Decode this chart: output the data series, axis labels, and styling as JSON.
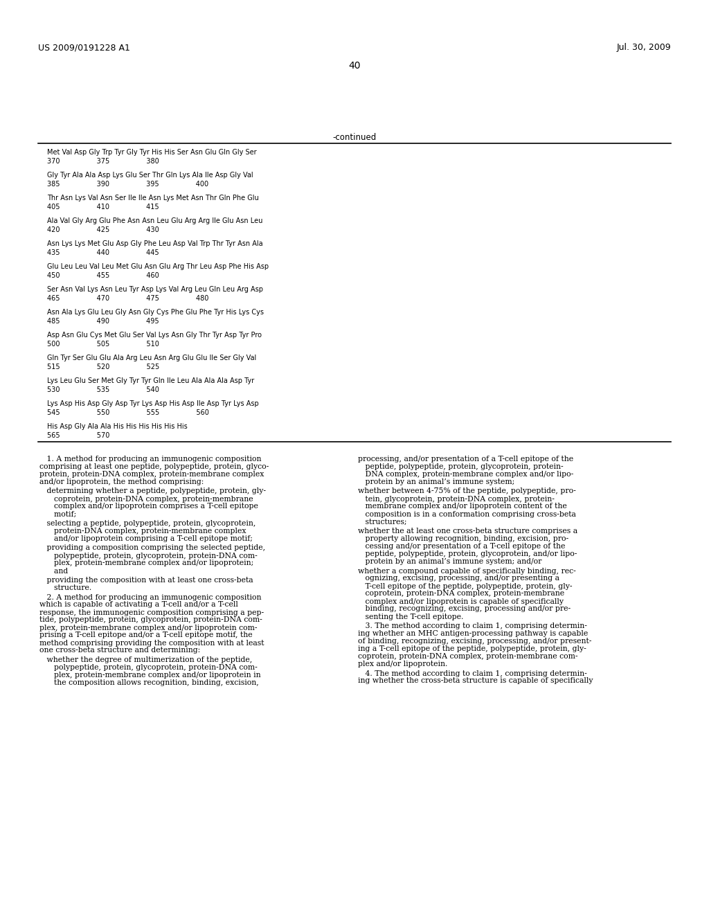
{
  "header_left": "US 2009/0191228 A1",
  "header_right": "Jul. 30, 2009",
  "page_number": "40",
  "continued_label": "-continued",
  "background_color": "#ffffff",
  "seq_lines": [
    [
      "Met Val Asp Gly Trp Tyr Gly Tyr His His Ser Asn Glu Gln Gly Ser",
      "370                 375                 380"
    ],
    [
      "Gly Tyr Ala Ala Asp Lys Glu Ser Thr Gln Lys Ala Ile Asp Gly Val",
      "385                 390                 395                 400"
    ],
    [
      "Thr Asn Lys Val Asn Ser Ile Ile Asn Lys Met Asn Thr Gln Phe Glu",
      "405                 410                 415"
    ],
    [
      "Ala Val Gly Arg Glu Phe Asn Asn Leu Glu Arg Arg Ile Glu Asn Leu",
      "420                 425                 430"
    ],
    [
      "Asn Lys Lys Met Glu Asp Gly Phe Leu Asp Val Trp Thr Tyr Asn Ala",
      "435                 440                 445"
    ],
    [
      "Glu Leu Leu Val Leu Met Glu Asn Glu Arg Thr Leu Asp Phe His Asp",
      "450                 455                 460"
    ],
    [
      "Ser Asn Val Lys Asn Leu Tyr Asp Lys Val Arg Leu Gln Leu Arg Asp",
      "465                 470                 475                 480"
    ],
    [
      "Asn Ala Lys Glu Leu Gly Asn Gly Cys Phe Glu Phe Tyr His Lys Cys",
      "485                 490                 495"
    ],
    [
      "Asp Asn Glu Cys Met Glu Ser Val Lys Asn Gly Thr Tyr Asp Tyr Pro",
      "500                 505                 510"
    ],
    [
      "Gln Tyr Ser Glu Glu Ala Arg Leu Asn Arg Glu Glu Ile Ser Gly Val",
      "515                 520                 525"
    ],
    [
      "Lys Leu Glu Ser Met Gly Tyr Tyr Gln Ile Leu Ala Ala Ala Asp Tyr",
      "530                 535                 540"
    ],
    [
      "Lys Asp His Asp Gly Asp Tyr Lys Asp His Asp Ile Asp Tyr Lys Asp",
      "545                 550                 555                 560"
    ],
    [
      "His Asp Gly Ala Ala His His His His His His",
      "565                 570"
    ]
  ],
  "left_col_blocks": [
    "   1. A method for producing an immunogenic composition\ncomprising at least one peptide, polypeptide, protein, glyco-\nprotein, protein-DNA complex, protein-membrane complex\nand/or lipoprotein, the method comprising:",
    "   determining whether a peptide, polypeptide, protein, gly-\n      coprotein, protein-DNA complex, protein-membrane\n      complex and/or lipoprotein comprises a T-cell epitope\n      motif;",
    "   selecting a peptide, polypeptide, protein, glycoprotein,\n      protein-DNA complex, protein-membrane complex\n      and/or lipoprotein comprising a T-cell epitope motif;",
    "   providing a composition comprising the selected peptide,\n      polypeptide, protein, glycoprotein, protein-DNA com-\n      plex, protein-membrane complex and/or lipoprotein;\n      and",
    "   providing the composition with at least one cross-beta\n      structure.",
    "   2. A method for producing an immunogenic composition\nwhich is capable of activating a T-cell and/or a T-cell\nresponse, the immunogenic composition comprising a pep-\ntide, polypeptide, protein, glycoprotein, protein-DNA com-\nplex, protein-membrane complex and/or lipoprotein com-\nprising a T-cell epitope and/or a T-cell epitope motif, the\nmethod comprising providing the composition with at least\none cross-beta structure and determining:",
    "   whether the degree of multimerization of the peptide,\n      polypeptide, protein, glycoprotein, protein-DNA com-\n      plex, protein-membrane complex and/or lipoprotein in\n      the composition allows recognition, binding, excision,"
  ],
  "right_col_blocks": [
    "processing, and/or presentation of a T-cell epitope of the\n   peptide, polypeptide, protein, glycoprotein, protein-\n   DNA complex, protein-membrane complex and/or lipo-\n   protein by an animal’s immune system;",
    "whether between 4-75% of the peptide, polypeptide, pro-\n   tein, glycoprotein, protein-DNA complex, protein-\n   membrane complex and/or lipoprotein content of the\n   composition is in a conformation comprising cross-beta\n   structures;",
    "whether the at least one cross-beta structure comprises a\n   property allowing recognition, binding, excision, pro-\n   cessing and/or presentation of a T-cell epitope of the\n   peptide, polypeptide, protein, glycoprotein, and/or lipo-\n   protein by an animal’s immune system; and/or",
    "whether a compound capable of specifically binding, rec-\n   ognizing, excising, processing, and/or presenting a\n   T-cell epitope of the peptide, polypeptide, protein, gly-\n   coprotein, protein-DNA complex, protein-membrane\n   complex and/or lipoprotein is capable of specifically\n   binding, recognizing, excising, processing and/or pre-\n   senting the T-cell epitope.",
    "   3. The method according to claim 1, comprising determin-\ning whether an MHC antigen-processing pathway is capable\nof binding, recognizing, excising, processing, and/or present-\ning a T-cell epitope of the peptide, polypeptide, protein, gly-\ncoprotein, protein-DNA complex, protein-membrane com-\nplex and/or lipoprotein.",
    "   4. The method according to claim 1, comprising determin-\ning whether the cross-beta structure is capable of specifically"
  ]
}
